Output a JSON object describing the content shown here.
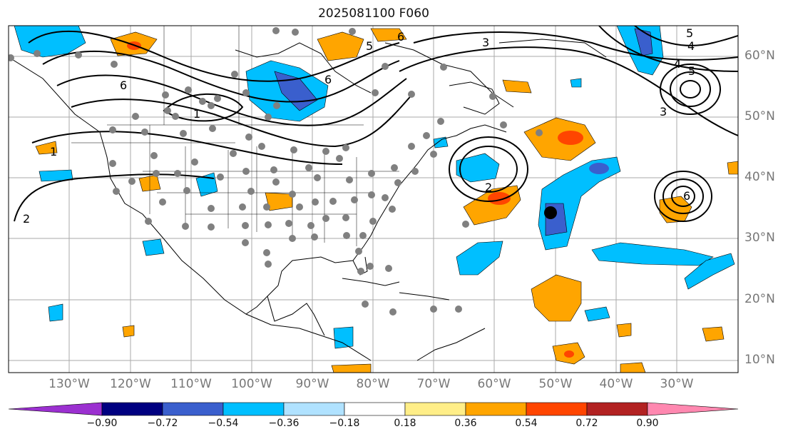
{
  "title": "2025081100 F060",
  "lon_labels": [
    "130°W",
    "120°W",
    "110°W",
    "100°W",
    "90°W",
    "80°W",
    "70°W",
    "60°W",
    "50°W",
    "40°W",
    "30°W"
  ],
  "lat_labels": [
    "60°N",
    "50°N",
    "40°N",
    "30°N",
    "20°N",
    "10°N"
  ],
  "colorbar": {
    "labels": [
      "−0.90",
      "−0.72",
      "−0.54",
      "−0.36",
      "−0.18",
      "0.18",
      "0.36",
      "0.54",
      "0.72",
      "0.90"
    ],
    "colors": [
      "#9b30d0",
      "#000080",
      "#3a5fcd",
      "#00bfff",
      "#b0e2ff",
      "#ffffff",
      "#ffee88",
      "#ffa500",
      "#ff4500",
      "#b22222",
      "#ff88b0"
    ]
  },
  "contour_labels": [
    "1",
    "1",
    "2",
    "2",
    "3",
    "3",
    "4",
    "4",
    "5",
    "5",
    "6",
    "6",
    "6",
    "5",
    "6"
  ],
  "marker": {
    "lon": "50°W",
    "lat": "34°N"
  }
}
